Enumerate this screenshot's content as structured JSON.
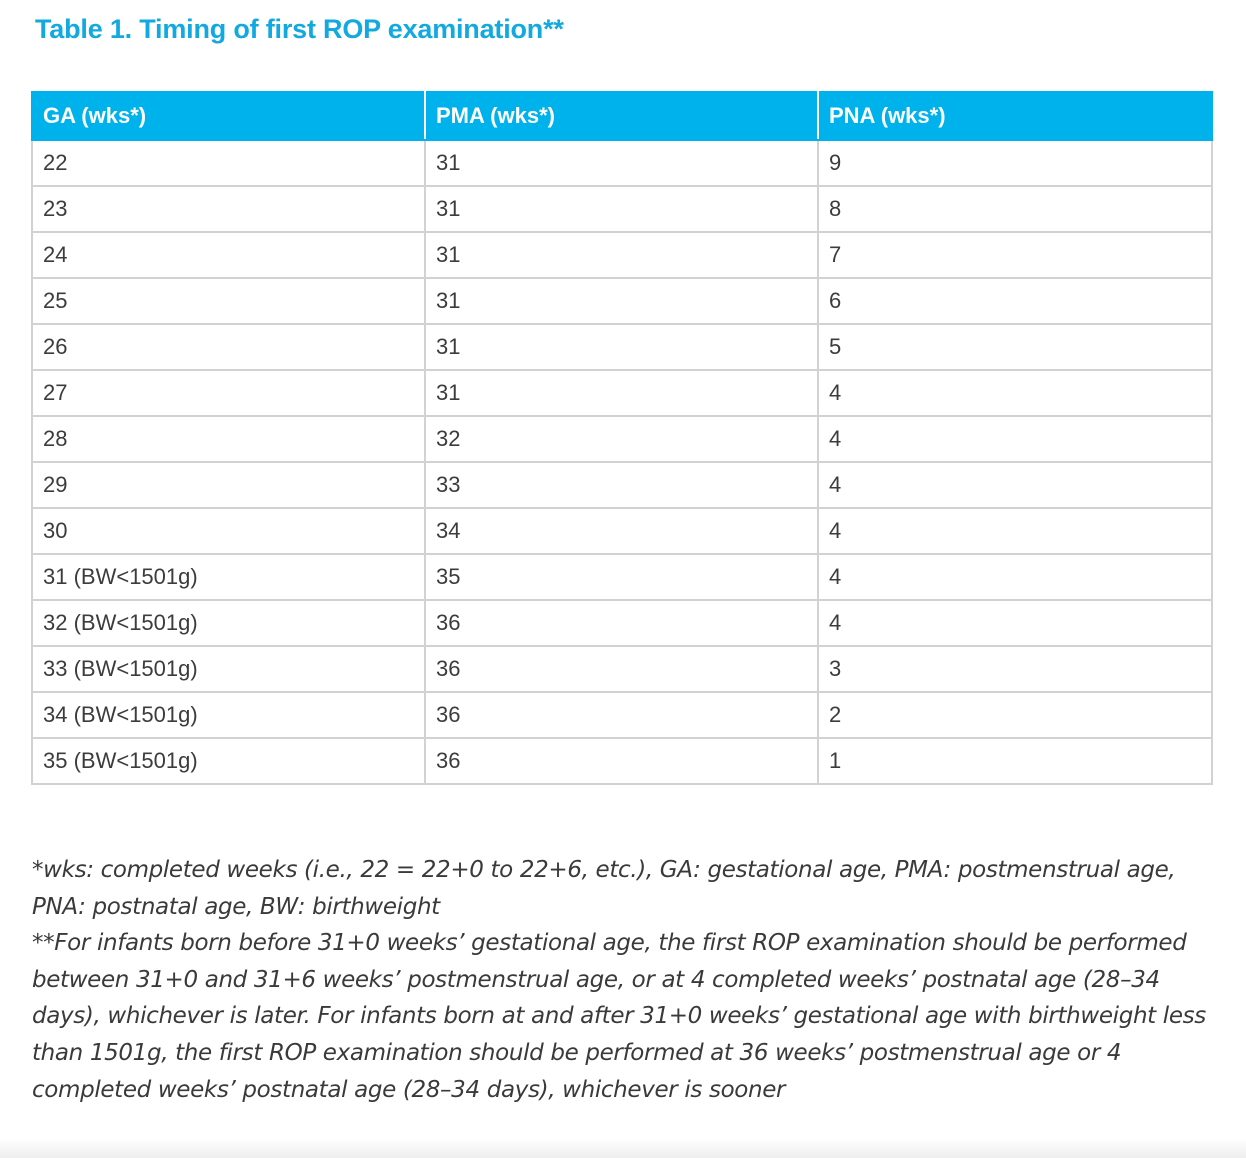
{
  "title": "Table 1. Timing of first ROP examination**",
  "table": {
    "headers": [
      "GA (wks*)",
      "PMA (wks*)",
      "PNA (wks*)"
    ],
    "rows": [
      [
        "22",
        "31",
        "9"
      ],
      [
        "23",
        "31",
        "8"
      ],
      [
        "24",
        "31",
        "7"
      ],
      [
        "25",
        "31",
        "6"
      ],
      [
        "26",
        "31",
        "5"
      ],
      [
        "27",
        "31",
        "4"
      ],
      [
        "28",
        "32",
        "4"
      ],
      [
        "29",
        "33",
        "4"
      ],
      [
        "30",
        "34",
        "4"
      ],
      [
        "31 (BW<1501g)",
        "35",
        "4"
      ],
      [
        "32 (BW<1501g)",
        "36",
        "4"
      ],
      [
        "33 (BW<1501g)",
        "36",
        "3"
      ],
      [
        "34 (BW<1501g)",
        "36",
        "2"
      ],
      [
        "35 (BW<1501g)",
        "36",
        "1"
      ]
    ]
  },
  "footnotes": {
    "abbreviations": "*wks: completed weeks (i.e., 22 = 22+0 to 22+6, etc.), GA: gestational age, PMA: postmenstrual age, PNA: postnatal age, BW: birthweight",
    "timing": "**For infants born before 31+0 weeks’ gestational age, the first ROP examination should be performed between 31+0 and 31+6 weeks’ postmenstrual age, or at 4 completed weeks’ postnatal age (28–34 days), whichever is later. For infants born at and after 31+0 weeks’ gestational age with birthweight less than 1501g, the first ROP examination should be performed at 36 weeks’ postmenstrual age or 4 completed weeks’ postnatal age (28–34 days), whichever is sooner"
  },
  "colors": {
    "title": "#12a9e0",
    "header_background": "#00b2eb",
    "grid": "#d2d2d2"
  }
}
